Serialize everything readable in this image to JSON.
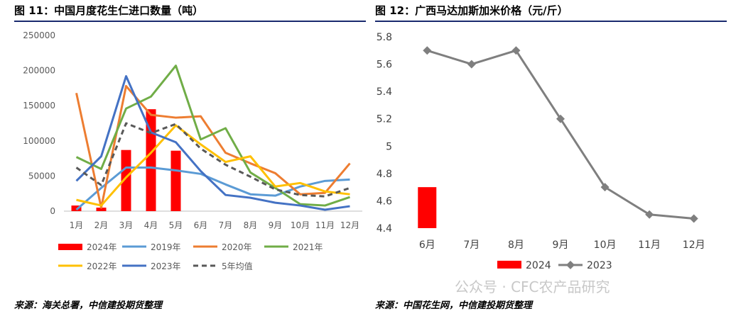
{
  "left_title": "图 11：中国月度花生仁进口数量（吨）",
  "right_title": "图 12：广西马达加斯加米价格（元/斤）",
  "left_source": "来源：海关总署，中信建投期货整理",
  "right_source": "来源：中国花生网，中信建投期货整理",
  "watermark": "公众号 · CFC农产品研究",
  "chart_data": [
    {
      "type": "bar",
      "title": "图 11：中国月度花生仁进口数量（吨）",
      "categories": [
        "1月",
        "2月",
        "3月",
        "4月",
        "5月",
        "6月",
        "7月",
        "8月",
        "9月",
        "10月",
        "11月",
        "12月"
      ],
      "ylim": [
        0,
        250000
      ],
      "yticks": [
        0,
        50000,
        100000,
        150000,
        200000,
        250000
      ],
      "legend_position": "bottom",
      "series": [
        {
          "name": "2024年",
          "kind": "bar",
          "color": "#ff0000",
          "values": [
            8000,
            5000,
            87000,
            145000,
            86000,
            null,
            null,
            null,
            null,
            null,
            null,
            null
          ]
        },
        {
          "name": "2019年",
          "kind": "line",
          "color": "#5b9bd5",
          "values": [
            2000,
            33000,
            62000,
            62000,
            58000,
            53000,
            38000,
            24000,
            22000,
            35000,
            43000,
            45000
          ]
        },
        {
          "name": "2020年",
          "kind": "line",
          "color": "#ed7d31",
          "values": [
            168000,
            5000,
            178000,
            137000,
            133000,
            135000,
            83000,
            68000,
            54000,
            24000,
            26000,
            68000
          ]
        },
        {
          "name": "2021年",
          "kind": "line",
          "color": "#70ad47",
          "values": [
            77000,
            60000,
            146000,
            163000,
            207000,
            102000,
            118000,
            55000,
            33000,
            10000,
            8000,
            20000
          ]
        },
        {
          "name": "2022年",
          "kind": "line",
          "color": "#ffc000",
          "values": [
            16000,
            8000,
            48000,
            83000,
            122000,
            95000,
            70000,
            78000,
            35000,
            40000,
            28000,
            24000
          ]
        },
        {
          "name": "2023年",
          "kind": "line",
          "color": "#4472c4",
          "values": [
            43000,
            78000,
            192000,
            112000,
            98000,
            57000,
            23000,
            19000,
            12000,
            8000,
            2000,
            7000
          ]
        },
        {
          "name": "5年均值",
          "kind": "dash",
          "color": "#595959",
          "values": [
            62000,
            37000,
            125000,
            111000,
            124000,
            89000,
            66000,
            49000,
            31000,
            23000,
            21000,
            33000
          ]
        }
      ]
    },
    {
      "type": "line",
      "title": "图 12：广西马达加斯加米价格（元/斤）",
      "categories": [
        "6月",
        "7月",
        "8月",
        "9月",
        "10月",
        "11月",
        "12月"
      ],
      "ylim": [
        4.4,
        5.8
      ],
      "yticks": [
        "4.4",
        "4.6",
        "4.8",
        "5",
        "5.2",
        "5.4",
        "5.6",
        "5.8"
      ],
      "legend_position": "bottom",
      "series": [
        {
          "name": "2024",
          "kind": "bar",
          "color": "#ff0000",
          "values": [
            4.7,
            null,
            null,
            null,
            null,
            null,
            null
          ]
        },
        {
          "name": "2023",
          "kind": "line",
          "color": "#7f7f7f",
          "values": [
            5.7,
            5.6,
            5.7,
            5.2,
            4.7,
            4.5,
            4.47
          ]
        }
      ]
    }
  ]
}
